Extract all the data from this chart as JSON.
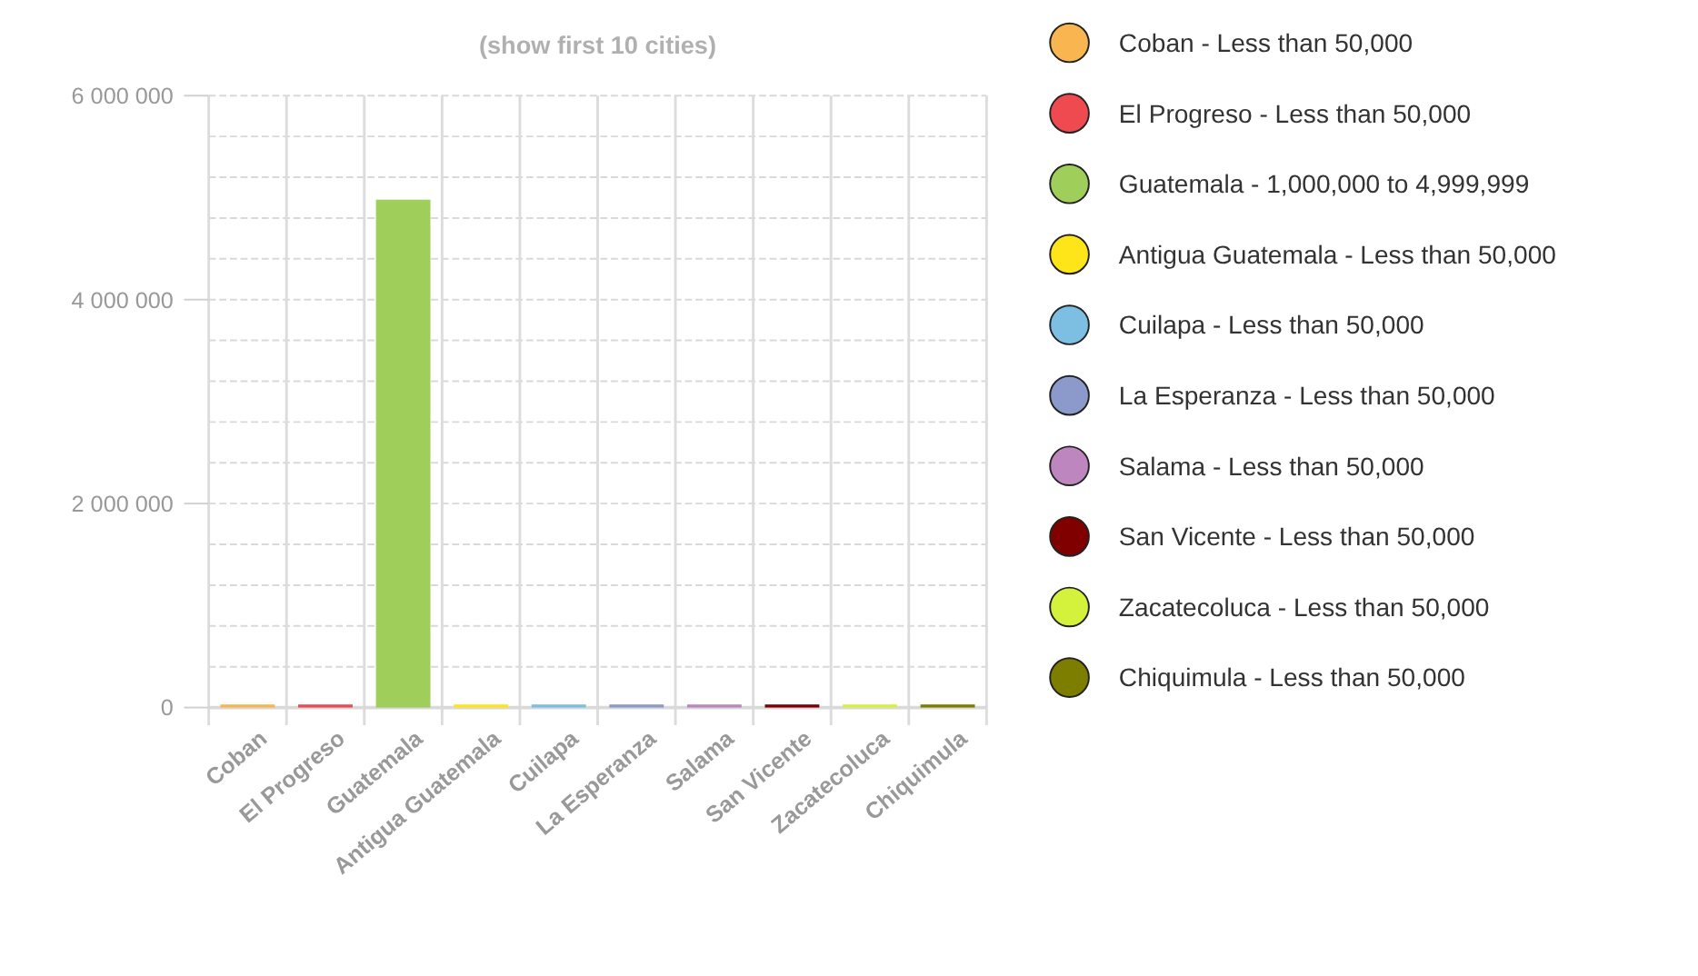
{
  "chart_data": {
    "type": "bar",
    "title": "(show first 10 cities)",
    "stacked": true,
    "grid": true,
    "legend": "right",
    "categories": [
      "Coban",
      "El Progreso",
      "Guatemala",
      "Antigua Guatemala",
      "Cuilapa",
      "La Esperanza",
      "Salama",
      "San Vicente",
      "Zacatecoluca",
      "Chiquimula"
    ],
    "ylim": [
      0,
      6000000
    ],
    "yticks": [
      {
        "value": 0,
        "label": "0"
      },
      {
        "value": 400000,
        "label": null
      },
      {
        "value": 800000,
        "label": null
      },
      {
        "value": 1200000,
        "label": null
      },
      {
        "value": 1600000,
        "label": null
      },
      {
        "value": 2000000,
        "label": "2 000 000"
      },
      {
        "value": 2400000,
        "label": null
      },
      {
        "value": 2800000,
        "label": null
      },
      {
        "value": 3200000,
        "label": null
      },
      {
        "value": 3600000,
        "label": null
      },
      {
        "value": 4000000,
        "label": "4 000 000"
      },
      {
        "value": 4400000,
        "label": null
      },
      {
        "value": 4800000,
        "label": null
      },
      {
        "value": 5200000,
        "label": null
      },
      {
        "value": 5600000,
        "label": null
      },
      {
        "value": 6000000,
        "label": "6 000 000"
      }
    ],
    "series": [
      {
        "name": "Coban - Less than 50,000",
        "color": "#f9b54f",
        "values": [
          30000,
          null,
          null,
          null,
          null,
          null,
          null,
          null,
          null,
          null
        ]
      },
      {
        "name": "El Progreso - Less than 50,000",
        "color": "#ef4a50",
        "values": [
          null,
          30000,
          null,
          null,
          null,
          null,
          null,
          null,
          null,
          null
        ]
      },
      {
        "name": "Guatemala - 1,000,000 to 4,999,999",
        "color": "#a0ce5a",
        "values": [
          null,
          null,
          4980000,
          null,
          null,
          null,
          null,
          null,
          null,
          null
        ]
      },
      {
        "name": "Antigua Guatemala - Less than 50,000",
        "color": "#fde51a",
        "values": [
          null,
          null,
          null,
          30000,
          null,
          null,
          null,
          null,
          null,
          null
        ]
      },
      {
        "name": "Cuilapa - Less than 50,000",
        "color": "#7cbfe3",
        "values": [
          null,
          null,
          null,
          null,
          30000,
          null,
          null,
          null,
          null,
          null
        ]
      },
      {
        "name": "La Esperanza - Less than 50,000",
        "color": "#8b9acb",
        "values": [
          null,
          null,
          null,
          null,
          null,
          30000,
          null,
          null,
          null,
          null
        ]
      },
      {
        "name": "Salama - Less than 50,000",
        "color": "#bd86bf",
        "values": [
          null,
          null,
          null,
          null,
          null,
          null,
          30000,
          null,
          null,
          null
        ]
      },
      {
        "name": "San Vicente - Less than 50,000",
        "color": "#800000",
        "values": [
          null,
          null,
          null,
          null,
          null,
          null,
          null,
          30000,
          null,
          null
        ]
      },
      {
        "name": "Zacatecoluca - Less than 50,000",
        "color": "#d4f23b",
        "values": [
          null,
          null,
          null,
          null,
          null,
          null,
          null,
          null,
          30000,
          null
        ]
      },
      {
        "name": "Chiquimula - Less than 50,000",
        "color": "#7d7d00",
        "values": [
          null,
          null,
          null,
          null,
          null,
          null,
          null,
          null,
          null,
          30000
        ]
      }
    ]
  }
}
